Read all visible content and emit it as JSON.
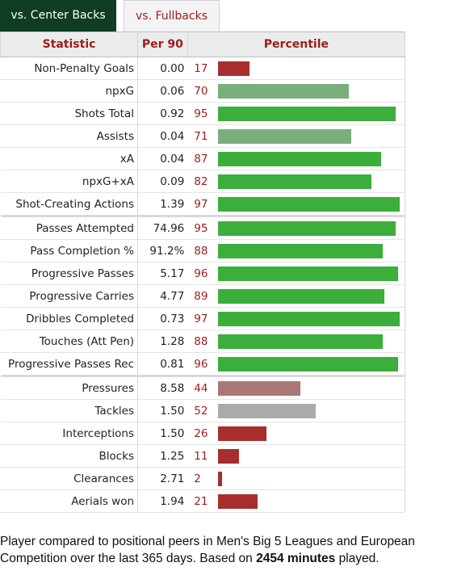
{
  "tabs": [
    {
      "label": "vs. Center Backs",
      "active": true
    },
    {
      "label": "vs. Fullbacks",
      "active": false
    }
  ],
  "chart_data": {
    "type": "bar",
    "orientation": "horizontal",
    "columns": {
      "stat": "Statistic",
      "per90": "Per 90",
      "percentile": "Percentile"
    },
    "xlim": [
      0,
      100
    ],
    "groups": [
      [
        {
          "stat": "Non-Penalty Goals",
          "per90": "0.00",
          "percentile": 17
        },
        {
          "stat": "npxG",
          "per90": "0.06",
          "percentile": 70
        },
        {
          "stat": "Shots Total",
          "per90": "0.92",
          "percentile": 95
        },
        {
          "stat": "Assists",
          "per90": "0.04",
          "percentile": 71
        },
        {
          "stat": "xA",
          "per90": "0.04",
          "percentile": 87
        },
        {
          "stat": "npxG+xA",
          "per90": "0.09",
          "percentile": 82
        },
        {
          "stat": "Shot-Creating Actions",
          "per90": "1.39",
          "percentile": 97
        }
      ],
      [
        {
          "stat": "Passes Attempted",
          "per90": "74.96",
          "percentile": 95
        },
        {
          "stat": "Pass Completion %",
          "per90": "91.2%",
          "percentile": 88
        },
        {
          "stat": "Progressive Passes",
          "per90": "5.17",
          "percentile": 96
        },
        {
          "stat": "Progressive Carries",
          "per90": "4.77",
          "percentile": 89
        },
        {
          "stat": "Dribbles Completed",
          "per90": "0.73",
          "percentile": 97
        },
        {
          "stat": "Touches (Att Pen)",
          "per90": "1.28",
          "percentile": 88
        },
        {
          "stat": "Progressive Passes Rec",
          "per90": "0.81",
          "percentile": 96
        }
      ],
      [
        {
          "stat": "Pressures",
          "per90": "8.58",
          "percentile": 44
        },
        {
          "stat": "Tackles",
          "per90": "1.50",
          "percentile": 52
        },
        {
          "stat": "Interceptions",
          "per90": "1.50",
          "percentile": 26
        },
        {
          "stat": "Blocks",
          "per90": "1.25",
          "percentile": 11
        },
        {
          "stat": "Clearances",
          "per90": "2.71",
          "percentile": 2
        },
        {
          "stat": "Aerials won",
          "per90": "1.94",
          "percentile": 21
        }
      ]
    ],
    "colors": {
      "high": "#3cae3c",
      "mid_high": "#7aaf7a",
      "neutral": "#aaaaaa",
      "mid_low": "#a87878",
      "low": "#a82e2e"
    }
  },
  "caption": {
    "prefix": "Player compared to positional peers in Men's Big 5 Leagues and European Competition over the last 365 days. Based on ",
    "minutes": "2454 minutes",
    "suffix": " played."
  }
}
